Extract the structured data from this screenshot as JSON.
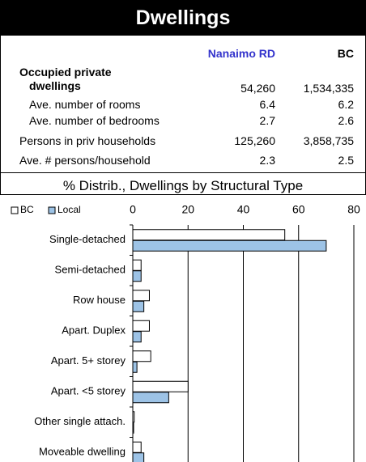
{
  "header": {
    "title": "Dwellings"
  },
  "table": {
    "columns": [
      "Nanaimo RD",
      "BC"
    ],
    "rows": [
      {
        "label": "Occupied private dwellings",
        "values": [
          "54,260",
          "1,534,335"
        ]
      },
      {
        "label": "Ave. number of rooms",
        "values": [
          "6.4",
          "6.2"
        ]
      },
      {
        "label": "Ave. number of bedrooms",
        "values": [
          "2.7",
          "2.6"
        ]
      },
      {
        "label": "Persons in priv households",
        "values": [
          "125,260",
          "3,858,735"
        ]
      },
      {
        "label": "Ave. # persons/household",
        "values": [
          "2.3",
          "2.5"
        ]
      }
    ]
  },
  "chart_data": {
    "type": "hbar",
    "title": "% Distrib., Dwellings by Structural Type",
    "categories": [
      "Single-detached",
      "Semi-detached",
      "Row house",
      "Apart. Duplex",
      "Apart. 5+ storey",
      "Apart. <5 storey",
      "Other single attach.",
      "Moveable dwelling"
    ],
    "series": [
      {
        "name": "BC",
        "color": "#ffffff",
        "values": [
          55,
          3,
          6,
          6,
          6.5,
          20,
          0.5,
          3
        ]
      },
      {
        "name": "Local",
        "color": "#9dc3e6",
        "values": [
          70,
          3,
          4,
          3,
          1.5,
          13,
          0.3,
          4
        ]
      }
    ],
    "xlim": [
      0,
      80
    ],
    "xticks": [
      0,
      20,
      40,
      60,
      80
    ],
    "grid": true
  }
}
